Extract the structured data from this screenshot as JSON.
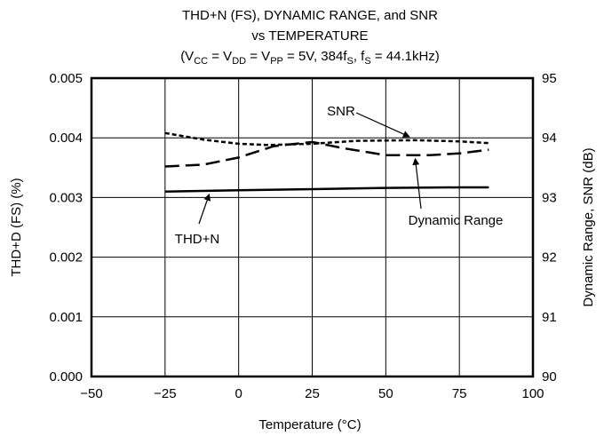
{
  "chart_data": {
    "type": "line",
    "title": "THD+N (FS), DYNAMIC RANGE, and SNR",
    "subtitle": "vs TEMPERATURE",
    "conditions": {
      "open": "(V",
      "vcc_sub": "CC",
      "eq1": " = V",
      "vdd_sub": "DD",
      "eq2": " = V",
      "vpp_sub": "PP",
      "rest1": " = 5V, 384f",
      "fs_sub1": "S",
      "rest2": ", f",
      "fs_sub2": "S",
      "rest3": " = 44.1kHz)"
    },
    "xlabel": "Temperature (°C)",
    "ylabel_left": "THD+D (FS) (%)",
    "ylabel_right": "Dynamic Range, SNR (dB)",
    "xlim": [
      -50,
      100
    ],
    "ylim_left": [
      0.0,
      0.005
    ],
    "ylim_right": [
      90,
      95
    ],
    "x_ticks": [
      "−50",
      "−25",
      "0",
      "25",
      "50",
      "75",
      "100"
    ],
    "x_tick_values": [
      -50,
      -25,
      0,
      25,
      50,
      75,
      100
    ],
    "y_left_ticks": [
      "0.000",
      "0.001",
      "0.002",
      "0.003",
      "0.004",
      "0.005"
    ],
    "y_left_tick_values": [
      0.0,
      0.001,
      0.002,
      0.003,
      0.004,
      0.005
    ],
    "y_right_ticks": [
      "90",
      "91",
      "92",
      "93",
      "94",
      "95"
    ],
    "y_right_tick_values": [
      90,
      91,
      92,
      93,
      94,
      95
    ],
    "grid": true,
    "series": [
      {
        "name": "THD+N",
        "axis": "left",
        "style": "solid",
        "x": [
          -25,
          0,
          25,
          50,
          75,
          85
        ],
        "values": [
          0.0031,
          0.00312,
          0.00314,
          0.00316,
          0.00317,
          0.00317
        ]
      },
      {
        "name": "SNR",
        "axis": "right",
        "style": "short-dash",
        "x": [
          -25,
          -12,
          0,
          10,
          25,
          40,
          60,
          75,
          85
        ],
        "values": [
          94.08,
          93.97,
          93.9,
          93.88,
          93.9,
          93.95,
          93.96,
          93.94,
          93.91
        ]
      },
      {
        "name": "Dynamic Range",
        "axis": "right",
        "style": "long-dash",
        "x": [
          -25,
          -12,
          0,
          12,
          25,
          35,
          50,
          65,
          75,
          85
        ],
        "values": [
          93.52,
          93.55,
          93.67,
          93.86,
          93.93,
          93.83,
          93.71,
          93.71,
          93.74,
          93.8
        ]
      }
    ],
    "annotations": [
      {
        "text": "SNR",
        "points_to": "SNR"
      },
      {
        "text": "Dynamic Range",
        "points_to": "Dynamic Range"
      },
      {
        "text": "THD+N",
        "points_to": "THD+N"
      }
    ]
  }
}
